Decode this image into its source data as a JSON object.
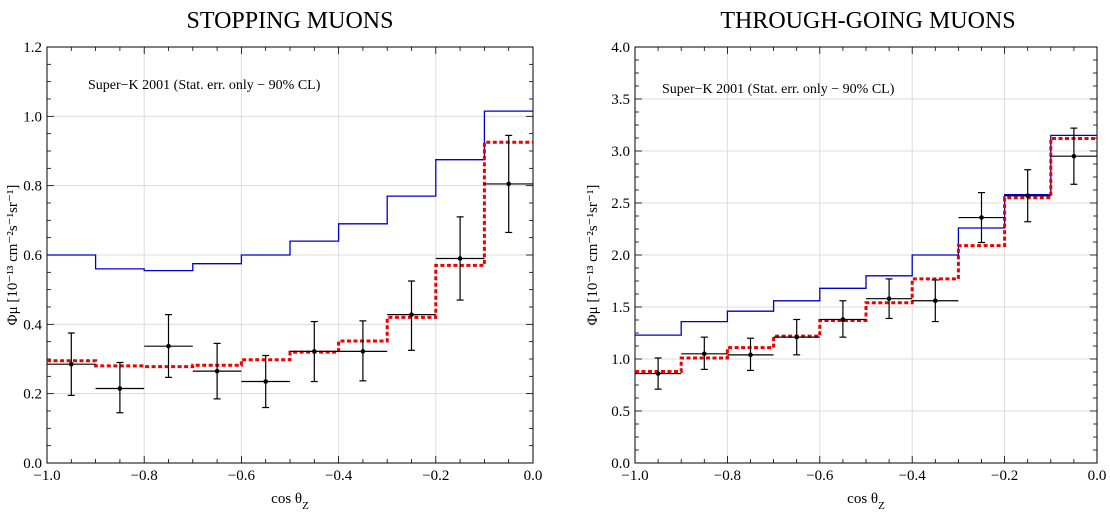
{
  "chart_data": [
    {
      "type": "step",
      "title": "STOPPING MUONS",
      "annotation": "Super−K  2001 (Stat. err. only − 90% CL)",
      "xlabel": "cos θ",
      "xlabel_sub": "Z",
      "ylabel": "Φμ [10⁻¹³ cm⁻²s⁻¹sr⁻¹]",
      "xlim": [
        -1.0,
        0.0
      ],
      "ylim": [
        0.0,
        1.2
      ],
      "xticks": [
        -1.0,
        -0.8,
        -0.6,
        -0.4,
        -0.2,
        0.0
      ],
      "xtick_labels": [
        "−1.0",
        "−0.8",
        "−0.6",
        "−0.4",
        "−0.2",
        "0.0"
      ],
      "yticks": [
        0.0,
        0.2,
        0.4,
        0.6,
        0.8,
        1.0,
        1.2
      ],
      "ytick_labels": [
        "0.0",
        "0.2",
        "0.4",
        "0.6",
        "0.8",
        "1.0",
        "1.2"
      ],
      "grid": true,
      "bin_edges": [
        -1.0,
        -0.9,
        -0.8,
        -0.7,
        -0.6,
        -0.5,
        -0.4,
        -0.3,
        -0.2,
        -0.1,
        0.0
      ],
      "series": [
        {
          "style": "solid",
          "color": "#0000cc",
          "values": [
            0.6,
            0.56,
            0.555,
            0.575,
            0.6,
            0.64,
            0.69,
            0.77,
            0.875,
            1.015
          ]
        },
        {
          "style": "dashed",
          "color": "#ee0000",
          "values": [
            0.295,
            0.28,
            0.278,
            0.282,
            0.298,
            0.32,
            0.352,
            0.42,
            0.57,
            0.925
          ]
        },
        {
          "style": "points",
          "color": "#000000",
          "values": [
            0.285,
            0.215,
            0.337,
            0.265,
            0.235,
            0.322,
            0.322,
            0.428,
            0.59,
            0.805
          ],
          "err_low": [
            0.195,
            0.145,
            0.247,
            0.185,
            0.16,
            0.235,
            0.237,
            0.325,
            0.47,
            0.665
          ],
          "err_high": [
            0.375,
            0.29,
            0.428,
            0.345,
            0.31,
            0.408,
            0.41,
            0.525,
            0.71,
            0.945
          ]
        }
      ]
    },
    {
      "type": "step",
      "title": "THROUGH-GOING MUONS",
      "annotation": "Super−K  2001 (Stat. err. only − 90% CL)",
      "xlabel": "cos θ",
      "xlabel_sub": "Z",
      "ylabel": "Φμ [10⁻¹³ cm⁻²s⁻¹sr⁻¹]",
      "xlim": [
        -1.0,
        0.0
      ],
      "ylim": [
        0.0,
        4.0
      ],
      "xticks": [
        -1.0,
        -0.8,
        -0.6,
        -0.4,
        -0.2,
        0.0
      ],
      "xtick_labels": [
        "−1.0",
        "−0.8",
        "−0.6",
        "−0.4",
        "−0.2",
        "0.0"
      ],
      "yticks": [
        0.0,
        0.5,
        1.0,
        1.5,
        2.0,
        2.5,
        3.0,
        3.5,
        4.0
      ],
      "ytick_labels": [
        "0.0",
        "0.5",
        "1.0",
        "1.5",
        "2.0",
        "2.5",
        "3.0",
        "3.5",
        "4.0"
      ],
      "grid": true,
      "bin_edges": [
        -1.0,
        -0.9,
        -0.8,
        -0.7,
        -0.6,
        -0.5,
        -0.4,
        -0.3,
        -0.2,
        -0.1,
        0.0
      ],
      "series": [
        {
          "style": "solid",
          "color": "#0000cc",
          "values": [
            1.23,
            1.36,
            1.46,
            1.56,
            1.68,
            1.8,
            2.0,
            2.26,
            2.58,
            3.15
          ]
        },
        {
          "style": "dashed",
          "color": "#ee0000",
          "values": [
            0.88,
            1.01,
            1.11,
            1.22,
            1.37,
            1.54,
            1.77,
            2.09,
            2.55,
            3.12
          ]
        },
        {
          "style": "points",
          "color": "#000000",
          "values": [
            0.86,
            1.05,
            1.04,
            1.21,
            1.38,
            1.58,
            1.56,
            2.36,
            2.57,
            2.95
          ],
          "err_low": [
            0.71,
            0.9,
            0.89,
            1.04,
            1.21,
            1.39,
            1.36,
            2.12,
            2.32,
            2.68
          ],
          "err_high": [
            1.01,
            1.21,
            1.2,
            1.38,
            1.56,
            1.77,
            1.76,
            2.6,
            2.82,
            3.22
          ]
        }
      ]
    }
  ]
}
